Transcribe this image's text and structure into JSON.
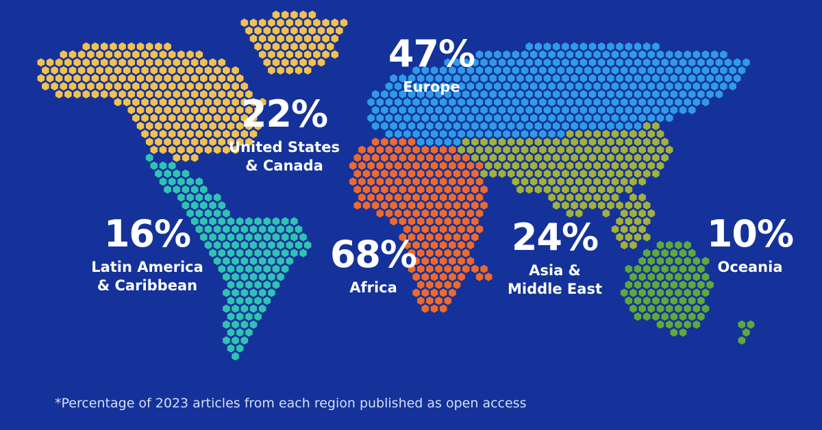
{
  "regions": [
    {
      "id": "us-canada",
      "percent": "22%",
      "name_lines": [
        "United States",
        "& Canada"
      ],
      "color": "#f2c14e"
    },
    {
      "id": "europe",
      "percent": "47%",
      "name_lines": [
        "Europe"
      ],
      "color": "#2f9be6"
    },
    {
      "id": "latin-america",
      "percent": "16%",
      "name_lines": [
        "Latin America",
        "& Caribbean"
      ],
      "color": "#2fc4b2"
    },
    {
      "id": "africa",
      "percent": "68%",
      "name_lines": [
        "Africa"
      ],
      "color": "#ee6a2c"
    },
    {
      "id": "asia-middle-east",
      "percent": "24%",
      "name_lines": [
        "Asia &",
        "Middle East"
      ],
      "color": "#a3b03a"
    },
    {
      "id": "oceania",
      "percent": "10%",
      "name_lines": [
        "Oceania"
      ],
      "color": "#5fa83c"
    }
  ],
  "footnote": "*Percentage of 2023 articles from each region published as open access",
  "background_color": "#14329a"
}
